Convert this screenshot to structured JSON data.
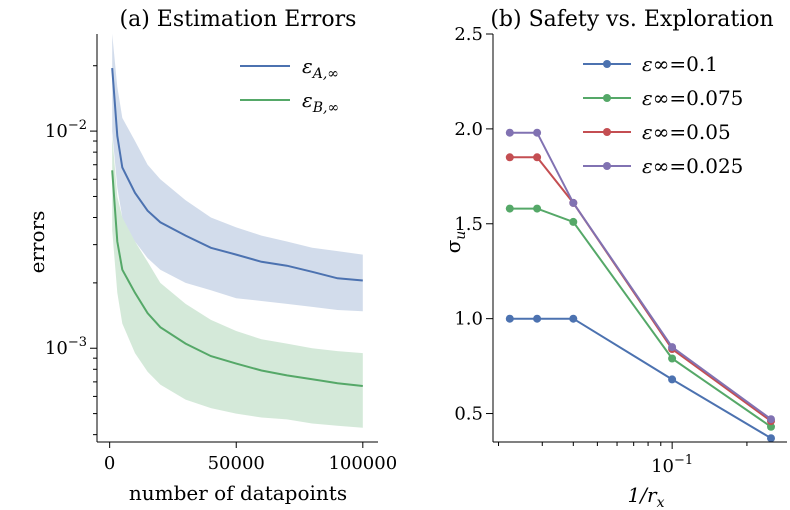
{
  "figure": {
    "panels": [
      "(a) Estimation Errors",
      "(b) Safety vs. Exploration"
    ]
  },
  "chart_data": [
    {
      "type": "line",
      "title": "(a) Estimation Errors",
      "xlabel": "number of datapoints",
      "ylabel": "errors",
      "yscale": "log",
      "xlim": [
        -5000,
        106000
      ],
      "ylim": [
        0.00037,
        0.028
      ],
      "xticks": [
        0,
        50000,
        100000
      ],
      "xtick_labels": [
        "0",
        "50000",
        "100000"
      ],
      "yticks": [
        0.01,
        0.001
      ],
      "ytick_labels": [
        "10^{-2}",
        "10^{-3}"
      ],
      "legend_position": "top-right",
      "grid": false,
      "x": [
        1000,
        3000,
        5000,
        10000,
        15000,
        20000,
        30000,
        40000,
        50000,
        60000,
        70000,
        80000,
        90000,
        100000
      ],
      "series": [
        {
          "name": "ε_{A,∞}",
          "name_main": "ε",
          "name_sub": "A,∞",
          "color": "#4c72b0",
          "band_color": "#4c72b0",
          "values": [
            0.0195,
            0.0095,
            0.0068,
            0.0052,
            0.0043,
            0.0038,
            0.0033,
            0.0029,
            0.0027,
            0.0025,
            0.0024,
            0.00225,
            0.0021,
            0.00205
          ],
          "lower": [
            0.01,
            0.0055,
            0.004,
            0.0031,
            0.0026,
            0.0023,
            0.002,
            0.00185,
            0.0017,
            0.00165,
            0.0016,
            0.00155,
            0.0015,
            0.00148
          ],
          "upper": [
            0.028,
            0.016,
            0.0115,
            0.009,
            0.007,
            0.006,
            0.0048,
            0.004,
            0.0036,
            0.0033,
            0.0031,
            0.0029,
            0.0028,
            0.0027
          ]
        },
        {
          "name": "ε_{B,∞}",
          "name_main": "ε",
          "name_sub": "B,∞",
          "color": "#55a868",
          "band_color": "#55a868",
          "values": [
            0.0066,
            0.0031,
            0.0023,
            0.0018,
            0.00145,
            0.00125,
            0.00105,
            0.00092,
            0.00085,
            0.00079,
            0.00075,
            0.00072,
            0.00069,
            0.00067
          ],
          "lower": [
            0.0035,
            0.0018,
            0.0013,
            0.00095,
            0.00078,
            0.00068,
            0.00058,
            0.00053,
            0.0005,
            0.00048,
            0.00047,
            0.00045,
            0.00044,
            0.00043
          ],
          "upper": [
            0.0095,
            0.005,
            0.004,
            0.0031,
            0.0025,
            0.002,
            0.0016,
            0.00135,
            0.0012,
            0.0011,
            0.00105,
            0.001,
            0.00097,
            0.00095
          ]
        }
      ]
    },
    {
      "type": "line",
      "title": "(b) Safety vs. Exploration",
      "xlabel": "1/r_x",
      "xlabel_main": "1/r",
      "xlabel_sub": "x",
      "ylabel": "σ_u",
      "ylabel_main": "σ",
      "ylabel_sub": "u",
      "xscale": "log",
      "xlim": [
        0.019,
        0.29
      ],
      "ylim": [
        0.35,
        2.5
      ],
      "xticks": [
        0.1
      ],
      "xtick_labels": [
        "10^{-1}"
      ],
      "yticks": [
        0.5,
        1.0,
        1.5,
        2.0,
        2.5
      ],
      "ytick_labels": [
        "0.5",
        "1.0",
        "1.5",
        "2.0",
        "2.5"
      ],
      "legend_position": "top-right",
      "grid": false,
      "x": [
        0.0222,
        0.0286,
        0.04,
        0.1,
        0.25
      ],
      "series": [
        {
          "name": "ε∞=0.1",
          "name_main": "ε",
          "name_rest": "∞=0.1",
          "color": "#4c72b0",
          "values": [
            1.0,
            1.0,
            1.0,
            0.68,
            0.37
          ]
        },
        {
          "name": "ε∞=0.075",
          "name_main": "ε",
          "name_rest": "∞=0.075",
          "color": "#55a868",
          "values": [
            1.58,
            1.58,
            1.51,
            0.79,
            0.43
          ]
        },
        {
          "name": "ε∞=0.05",
          "name_main": "ε",
          "name_rest": "∞=0.05",
          "color": "#c44e52",
          "values": [
            1.85,
            1.85,
            1.61,
            0.84,
            0.46
          ]
        },
        {
          "name": "ε∞=0.025",
          "name_main": "ε",
          "name_rest": "∞=0.025",
          "color": "#8172b2",
          "values": [
            1.98,
            1.98,
            1.61,
            0.85,
            0.47
          ]
        }
      ]
    }
  ]
}
